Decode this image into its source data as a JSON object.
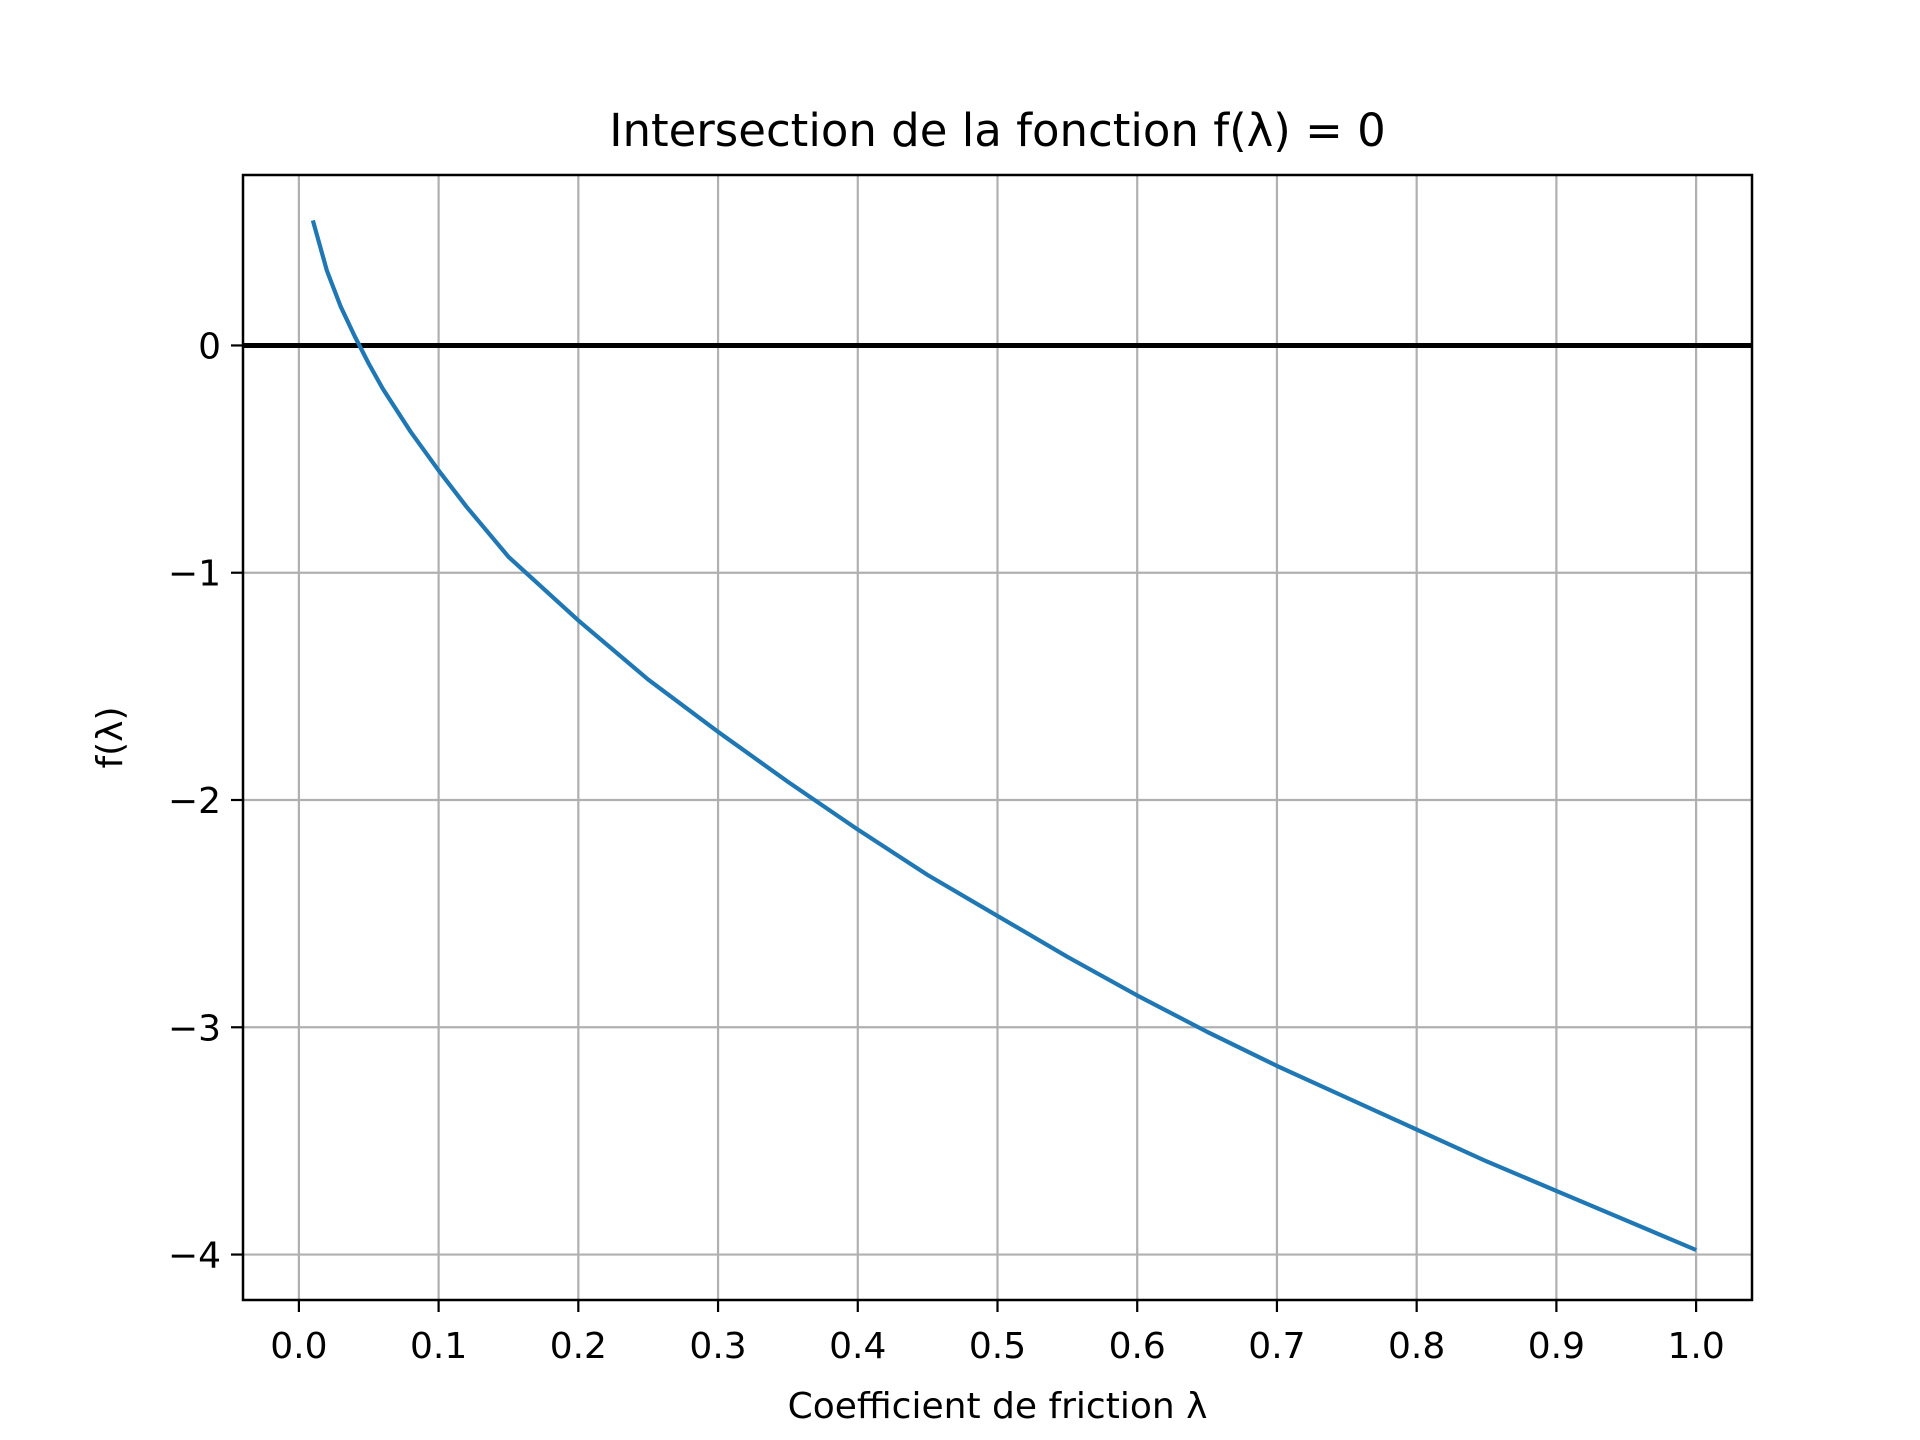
{
  "chart_data": {
    "type": "line",
    "title": "Intersection de la fonction f(λ) = 0",
    "xlabel": "Coefficient de friction λ",
    "ylabel": "f(λ)",
    "xlim": [
      -0.04,
      1.04
    ],
    "ylim": [
      -4.2,
      0.75
    ],
    "grid": true,
    "legend": "none",
    "x_ticks": [
      0.0,
      0.1,
      0.2,
      0.3,
      0.4,
      0.5,
      0.6,
      0.7,
      0.8,
      0.9,
      1.0
    ],
    "x_tick_labels": [
      "0.0",
      "0.1",
      "0.2",
      "0.3",
      "0.4",
      "0.5",
      "0.6",
      "0.7",
      "0.8",
      "0.9",
      "1.0"
    ],
    "y_ticks": [
      0,
      -1,
      -2,
      -3,
      -4
    ],
    "y_tick_labels": [
      "0",
      "−1",
      "−2",
      "−3",
      "−4"
    ],
    "reference_line": {
      "y": 0,
      "color": "#000000"
    },
    "series": [
      {
        "color": "#1f77b4",
        "x": [
          0.01,
          0.02,
          0.03,
          0.04,
          0.05,
          0.06,
          0.08,
          0.1,
          0.12,
          0.15,
          0.2,
          0.25,
          0.3,
          0.35,
          0.4,
          0.45,
          0.5,
          0.55,
          0.6,
          0.65,
          0.7,
          0.75,
          0.8,
          0.85,
          0.9,
          0.95,
          1.0
        ],
        "y": [
          0.55,
          0.33,
          0.17,
          0.04,
          -0.08,
          -0.19,
          -0.38,
          -0.55,
          -0.71,
          -0.93,
          -1.21,
          -1.47,
          -1.7,
          -1.92,
          -2.13,
          -2.33,
          -2.51,
          -2.69,
          -2.86,
          -3.02,
          -3.17,
          -3.31,
          -3.45,
          -3.59,
          -3.72,
          -3.85,
          -3.98
        ]
      }
    ]
  }
}
